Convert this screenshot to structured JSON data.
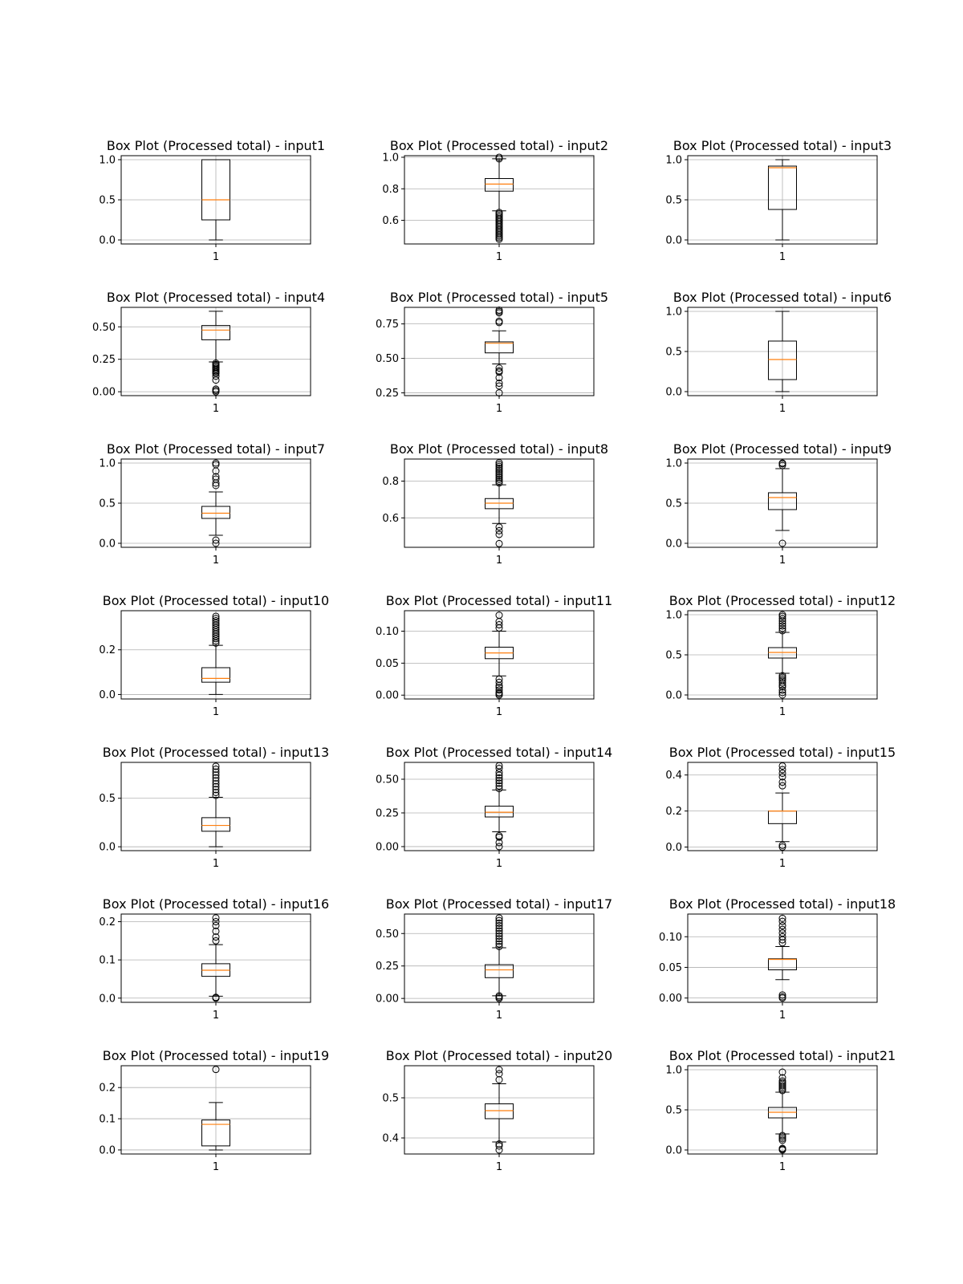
{
  "chart_data": [
    {
      "type": "box",
      "title": "Box Plot (Processed total) - input1",
      "category": "1",
      "ylim": [
        -0.05,
        1.05
      ],
      "yticks": [
        0,
        0.5,
        1
      ],
      "tick_labels": [
        "0.0",
        "0.5",
        "1.0"
      ],
      "whisker_low": 0,
      "q1": 0.25,
      "median": 0.5,
      "q3": 1.0,
      "whisker_high": 1.0,
      "outliers": []
    },
    {
      "type": "box",
      "title": "Box Plot (Processed total) - input2",
      "category": "1",
      "ylim": [
        0.45,
        1.01
      ],
      "yticks": [
        0.6,
        0.8,
        1.0
      ],
      "tick_labels": [
        "0.6",
        "0.8",
        "1.0"
      ],
      "whisker_low": 0.66,
      "q1": 0.785,
      "median": 0.83,
      "q3": 0.865,
      "whisker_high": 0.99,
      "outliers": [
        0.48,
        0.49,
        0.5,
        0.51,
        0.52,
        0.53,
        0.54,
        0.55,
        0.56,
        0.57,
        0.58,
        0.59,
        0.6,
        0.61,
        0.62,
        0.63,
        0.64,
        0.65,
        0.99,
        1.0
      ]
    },
    {
      "type": "box",
      "title": "Box Plot (Processed total) - input3",
      "category": "1",
      "ylim": [
        -0.05,
        1.05
      ],
      "yticks": [
        0,
        0.5,
        1
      ],
      "tick_labels": [
        "0.0",
        "0.5",
        "1.0"
      ],
      "whisker_low": 0,
      "q1": 0.38,
      "median": 0.9,
      "q3": 0.92,
      "whisker_high": 1.0,
      "outliers": []
    },
    {
      "type": "box",
      "title": "Box Plot (Processed total) - input4",
      "category": "1",
      "ylim": [
        -0.03,
        0.65
      ],
      "yticks": [
        0,
        0.25,
        0.5
      ],
      "tick_labels": [
        "0.00",
        "0.25",
        "0.50"
      ],
      "whisker_low": 0.23,
      "q1": 0.4,
      "median": 0.475,
      "q3": 0.51,
      "whisker_high": 0.62,
      "outliers": [
        0.0,
        0.01,
        0.02,
        0.09,
        0.12,
        0.14,
        0.15,
        0.16,
        0.17,
        0.18,
        0.19,
        0.2,
        0.21,
        0.22
      ]
    },
    {
      "type": "box",
      "title": "Box Plot (Processed total) - input5",
      "category": "1",
      "ylim": [
        0.23,
        0.87
      ],
      "yticks": [
        0.25,
        0.5,
        0.75
      ],
      "tick_labels": [
        "0.25",
        "0.50",
        "0.75"
      ],
      "whisker_low": 0.46,
      "q1": 0.54,
      "median": 0.61,
      "q3": 0.62,
      "whisker_high": 0.7,
      "outliers": [
        0.25,
        0.3,
        0.32,
        0.36,
        0.4,
        0.41,
        0.43,
        0.76,
        0.77,
        0.83,
        0.84,
        0.85
      ]
    },
    {
      "type": "box",
      "title": "Box Plot (Processed total) - input6",
      "category": "1",
      "ylim": [
        -0.05,
        1.05
      ],
      "yticks": [
        0,
        0.5,
        1
      ],
      "tick_labels": [
        "0.0",
        "0.5",
        "1.0"
      ],
      "whisker_low": 0,
      "q1": 0.15,
      "median": 0.4,
      "q3": 0.63,
      "whisker_high": 1.0,
      "outliers": []
    },
    {
      "type": "box",
      "title": "Box Plot (Processed total) - input7",
      "category": "1",
      "ylim": [
        -0.05,
        1.05
      ],
      "yticks": [
        0,
        0.5,
        1
      ],
      "tick_labels": [
        "0.0",
        "0.5",
        "1.0"
      ],
      "whisker_low": 0.1,
      "q1": 0.31,
      "median": 0.375,
      "q3": 0.46,
      "whisker_high": 0.64,
      "outliers": [
        0.0,
        0.04,
        0.72,
        0.75,
        0.8,
        0.83,
        0.9,
        0.98,
        1.0
      ]
    },
    {
      "type": "box",
      "title": "Box Plot (Processed total) - input8",
      "category": "1",
      "ylim": [
        0.44,
        0.92
      ],
      "yticks": [
        0.6,
        0.8
      ],
      "tick_labels": [
        "0.6",
        "0.8"
      ],
      "whisker_low": 0.57,
      "q1": 0.65,
      "median": 0.68,
      "q3": 0.705,
      "whisker_high": 0.78,
      "outliers": [
        0.46,
        0.51,
        0.53,
        0.55,
        0.79,
        0.8,
        0.81,
        0.82,
        0.83,
        0.84,
        0.85,
        0.86,
        0.87,
        0.88,
        0.89,
        0.9
      ]
    },
    {
      "type": "box",
      "title": "Box Plot (Processed total) - input9",
      "category": "1",
      "ylim": [
        -0.05,
        1.05
      ],
      "yticks": [
        0,
        0.5,
        1
      ],
      "tick_labels": [
        "0.0",
        "0.5",
        "1.0"
      ],
      "whisker_low": 0.16,
      "q1": 0.42,
      "median": 0.57,
      "q3": 0.63,
      "whisker_high": 0.93,
      "outliers": [
        0.0,
        0.97,
        0.99,
        1.0
      ]
    },
    {
      "type": "box",
      "title": "Box Plot (Processed total) - input10",
      "category": "1",
      "ylim": [
        -0.02,
        0.375
      ],
      "yticks": [
        0,
        0.2
      ],
      "tick_labels": [
        "0.0",
        "0.2"
      ],
      "whisker_low": 0.0,
      "q1": 0.055,
      "median": 0.072,
      "q3": 0.12,
      "whisker_high": 0.22,
      "outliers": [
        0.23,
        0.24,
        0.25,
        0.26,
        0.27,
        0.28,
        0.29,
        0.3,
        0.31,
        0.32,
        0.33,
        0.34,
        0.35
      ]
    },
    {
      "type": "box",
      "title": "Box Plot (Processed total) - input11",
      "category": "1",
      "ylim": [
        -0.006,
        0.132
      ],
      "yticks": [
        0,
        0.05,
        0.1
      ],
      "tick_labels": [
        "0.00",
        "0.05",
        "0.10"
      ],
      "whisker_low": 0.03,
      "q1": 0.057,
      "median": 0.066,
      "q3": 0.075,
      "whisker_high": 0.1,
      "outliers": [
        0.0,
        0.002,
        0.004,
        0.008,
        0.012,
        0.015,
        0.02,
        0.025,
        0.105,
        0.11,
        0.115,
        0.125
      ]
    },
    {
      "type": "box",
      "title": "Box Plot (Processed total) - input12",
      "category": "1",
      "ylim": [
        -0.05,
        1.05
      ],
      "yticks": [
        0,
        0.5,
        1
      ],
      "tick_labels": [
        "0.0",
        "0.5",
        "1.0"
      ],
      "whisker_low": 0.27,
      "q1": 0.46,
      "median": 0.53,
      "q3": 0.59,
      "whisker_high": 0.78,
      "outliers": [
        0.0,
        0.03,
        0.06,
        0.1,
        0.12,
        0.15,
        0.18,
        0.2,
        0.22,
        0.24,
        0.8,
        0.83,
        0.86,
        0.89,
        0.92,
        0.95,
        0.98,
        1.0
      ]
    },
    {
      "type": "box",
      "title": "Box Plot (Processed total) - input13",
      "category": "1",
      "ylim": [
        -0.04,
        0.87
      ],
      "yticks": [
        0,
        0.5
      ],
      "tick_labels": [
        "0.0",
        "0.5"
      ],
      "whisker_low": 0.0,
      "q1": 0.16,
      "median": 0.22,
      "q3": 0.3,
      "whisker_high": 0.51,
      "outliers": [
        0.53,
        0.56,
        0.59,
        0.62,
        0.65,
        0.68,
        0.71,
        0.74,
        0.77,
        0.8,
        0.83
      ]
    },
    {
      "type": "box",
      "title": "Box Plot (Processed total) - input14",
      "category": "1",
      "ylim": [
        -0.03,
        0.625
      ],
      "yticks": [
        0,
        0.25,
        0.5
      ],
      "tick_labels": [
        "0.00",
        "0.25",
        "0.50"
      ],
      "whisker_low": 0.11,
      "q1": 0.22,
      "median": 0.255,
      "q3": 0.3,
      "whisker_high": 0.42,
      "outliers": [
        0.0,
        0.03,
        0.07,
        0.08,
        0.43,
        0.45,
        0.47,
        0.49,
        0.51,
        0.53,
        0.55,
        0.58,
        0.6
      ]
    },
    {
      "type": "box",
      "title": "Box Plot (Processed total) - input15",
      "category": "1",
      "ylim": [
        -0.02,
        0.47
      ],
      "yticks": [
        0,
        0.2,
        0.4
      ],
      "tick_labels": [
        "0.0",
        "0.2",
        "0.4"
      ],
      "whisker_low": 0.03,
      "q1": 0.13,
      "median": 0.2,
      "q3": 0.2,
      "whisker_high": 0.3,
      "outliers": [
        0.0,
        0.01,
        0.34,
        0.36,
        0.39,
        0.41,
        0.43,
        0.45
      ]
    },
    {
      "type": "box",
      "title": "Box Plot (Processed total) - input16",
      "category": "1",
      "ylim": [
        -0.011,
        0.22
      ],
      "yticks": [
        0,
        0.1,
        0.2
      ],
      "tick_labels": [
        "0.0",
        "0.1",
        "0.2"
      ],
      "whisker_low": 0.005,
      "q1": 0.057,
      "median": 0.073,
      "q3": 0.09,
      "whisker_high": 0.14,
      "outliers": [
        0.0,
        0.002,
        0.15,
        0.16,
        0.175,
        0.19,
        0.2,
        0.21
      ]
    },
    {
      "type": "box",
      "title": "Box Plot (Processed total) - input17",
      "category": "1",
      "ylim": [
        -0.03,
        0.65
      ],
      "yticks": [
        0,
        0.25,
        0.5
      ],
      "tick_labels": [
        "0.00",
        "0.25",
        "0.50"
      ],
      "whisker_low": 0.02,
      "q1": 0.16,
      "median": 0.22,
      "q3": 0.26,
      "whisker_high": 0.39,
      "outliers": [
        0.0,
        0.01,
        0.02,
        0.4,
        0.42,
        0.44,
        0.46,
        0.48,
        0.5,
        0.52,
        0.54,
        0.56,
        0.58,
        0.6,
        0.62
      ]
    },
    {
      "type": "box",
      "title": "Box Plot (Processed total) - input18",
      "category": "1",
      "ylim": [
        -0.007,
        0.137
      ],
      "yticks": [
        0,
        0.05,
        0.1
      ],
      "tick_labels": [
        "0.00",
        "0.05",
        "0.10"
      ],
      "whisker_low": 0.03,
      "q1": 0.046,
      "median": 0.063,
      "q3": 0.064,
      "whisker_high": 0.084,
      "outliers": [
        0.0,
        0.002,
        0.005,
        0.09,
        0.095,
        0.1,
        0.106,
        0.112,
        0.118,
        0.125,
        0.13
      ]
    },
    {
      "type": "box",
      "title": "Box Plot (Processed total) - input19",
      "category": "1",
      "ylim": [
        -0.013,
        0.27
      ],
      "yticks": [
        0,
        0.1,
        0.2
      ],
      "tick_labels": [
        "0.0",
        "0.1",
        "0.2"
      ],
      "whisker_low": 0.0,
      "q1": 0.013,
      "median": 0.082,
      "q3": 0.096,
      "whisker_high": 0.152,
      "outliers": [
        0.258
      ]
    },
    {
      "type": "box",
      "title": "Box Plot (Processed total) - input20",
      "category": "1",
      "ylim": [
        0.36,
        0.58
      ],
      "yticks": [
        0.4,
        0.5
      ],
      "tick_labels": [
        "0.4",
        "0.5"
      ],
      "whisker_low": 0.39,
      "q1": 0.448,
      "median": 0.468,
      "q3": 0.485,
      "whisker_high": 0.535,
      "outliers": [
        0.37,
        0.38,
        0.385,
        0.545,
        0.56,
        0.57
      ]
    },
    {
      "type": "box",
      "title": "Box Plot (Processed total) - input21",
      "category": "1",
      "ylim": [
        -0.05,
        1.05
      ],
      "yticks": [
        0,
        0.5,
        1
      ],
      "tick_labels": [
        "0.0",
        "0.5",
        "1.0"
      ],
      "whisker_low": 0.2,
      "q1": 0.4,
      "median": 0.47,
      "q3": 0.53,
      "whisker_high": 0.72,
      "outliers": [
        0.0,
        0.01,
        0.02,
        0.12,
        0.14,
        0.16,
        0.18,
        0.74,
        0.76,
        0.78,
        0.8,
        0.82,
        0.84,
        0.86,
        0.9,
        0.97
      ]
    }
  ],
  "style": {
    "box_color": "#000000",
    "median_color": "#ff7f0e",
    "grid_color": "#b0b0b0"
  }
}
